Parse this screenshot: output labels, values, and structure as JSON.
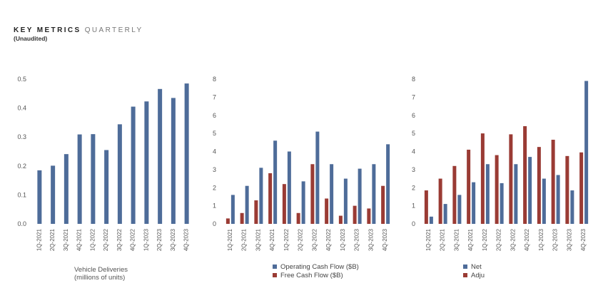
{
  "header": {
    "title_bold": "KEY METRICS",
    "title_light": "QUARTERLY",
    "subtitle": "(Unaudited)"
  },
  "colors": {
    "blue": "#4e6c99",
    "red": "#9a3b34"
  },
  "chart_data": [
    {
      "type": "bar",
      "categories": [
        "1Q-2021",
        "2Q-2021",
        "3Q-2021",
        "4Q-2021",
        "1Q-2022",
        "2Q-2022",
        "3Q-2022",
        "4Q-2022",
        "1Q-2023",
        "2Q-2023",
        "3Q-2023",
        "4Q-2023"
      ],
      "series": [
        {
          "color": "#4e6c99",
          "values": [
            0.185,
            0.201,
            0.241,
            0.309,
            0.31,
            0.255,
            0.344,
            0.405,
            0.423,
            0.466,
            0.435,
            0.485
          ]
        }
      ],
      "caption": [
        "Vehicle Deliveries",
        "(millions of units)"
      ],
      "legend": [],
      "ylim": [
        0,
        0.5
      ],
      "yticks": [
        "0.0",
        "0.1",
        "0.2",
        "0.3",
        "0.4",
        "0.5"
      ]
    },
    {
      "type": "bar",
      "categories": [
        "1Q-2021",
        "2Q-2021",
        "3Q-2021",
        "4Q-2021",
        "1Q-2022",
        "2Q-2022",
        "3Q-2022",
        "4Q-2022",
        "1Q-2023",
        "2Q-2023",
        "3Q-2023",
        "4Q-2023"
      ],
      "series": [
        {
          "name": "Operating Cash Flow ($B)",
          "color": "#4e6c99",
          "values": [
            1.6,
            2.1,
            3.1,
            4.6,
            4.0,
            2.35,
            5.1,
            3.3,
            2.5,
            3.05,
            3.3,
            4.4
          ]
        },
        {
          "name": "Free Cash Flow ($B)",
          "color": "#9a3b34",
          "values": [
            0.3,
            0.6,
            1.3,
            2.8,
            2.2,
            0.6,
            3.3,
            1.4,
            0.45,
            1.0,
            0.85,
            2.1
          ]
        }
      ],
      "caption": [],
      "legend": [
        "Operating Cash Flow ($B)",
        "Free Cash Flow ($B)"
      ],
      "ylim": [
        0,
        8
      ],
      "yticks": [
        "0",
        "1",
        "2",
        "3",
        "4",
        "5",
        "6",
        "7",
        "8"
      ]
    },
    {
      "type": "bar",
      "categories": [
        "1Q-2021",
        "2Q-2021",
        "3Q-2021",
        "4Q-2021",
        "1Q-2022",
        "2Q-2022",
        "3Q-2022",
        "4Q-2022",
        "1Q-2023",
        "2Q-2023",
        "3Q-2023",
        "4Q-2023"
      ],
      "series": [
        {
          "name": "Net",
          "color": "#4e6c99",
          "values": [
            0.4,
            1.1,
            1.6,
            2.3,
            3.3,
            2.25,
            3.3,
            3.7,
            2.5,
            2.7,
            1.85,
            7.9
          ]
        },
        {
          "name": "Adju",
          "color": "#9a3b34",
          "values": [
            1.85,
            2.5,
            3.2,
            4.1,
            5.0,
            3.8,
            4.95,
            5.4,
            4.25,
            4.65,
            3.75,
            3.95
          ]
        }
      ],
      "caption": [],
      "legend": [
        "Net",
        "Adju"
      ],
      "ylim": [
        0,
        8
      ],
      "yticks": [
        "0",
        "1",
        "2",
        "3",
        "4",
        "5",
        "6",
        "7",
        "8"
      ]
    }
  ]
}
